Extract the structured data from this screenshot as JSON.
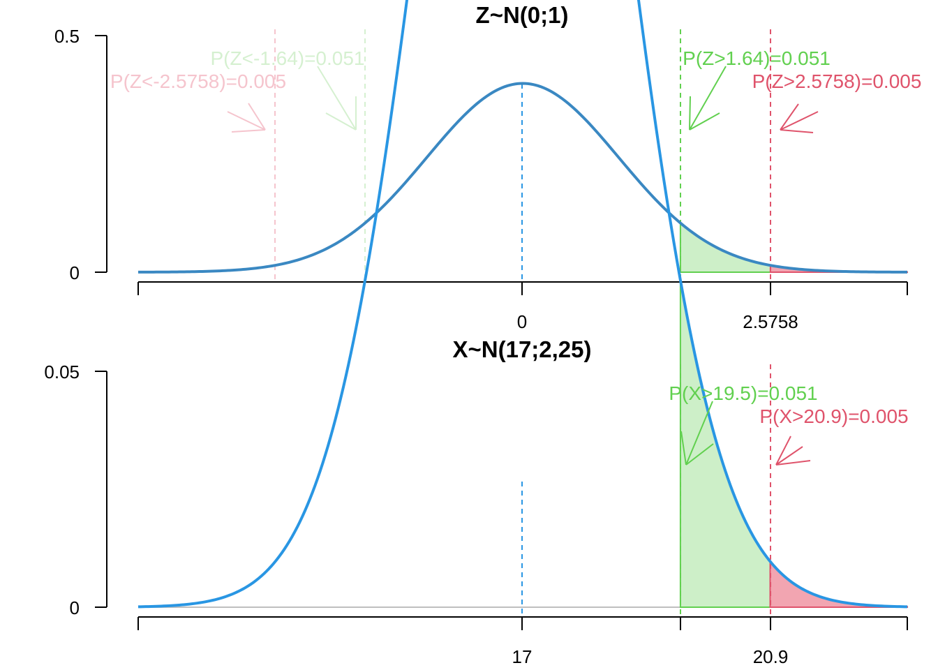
{
  "chart_data": [
    {
      "type": "line",
      "title": "Z~N(0;1)",
      "distribution": "normal",
      "mean": 0,
      "sd": 1,
      "xlim": [
        -4,
        4
      ],
      "ylim": [
        0,
        0.5
      ],
      "x_ticks_labeled": [
        "0",
        "2.5758"
      ],
      "x_ticks": [
        -4,
        0,
        1.64,
        2.5758,
        4
      ],
      "y_ticks": [
        "0",
        "0.5"
      ],
      "mean_line_color": "#2996e3",
      "curve_color": "#3a88c2",
      "shaded_regions": [
        {
          "from": 1.64,
          "to": 4,
          "color": "#61d04f",
          "fill": "#cdefc8"
        },
        {
          "from": 2.5758,
          "to": 4,
          "color": "#df536b",
          "fill": "#f2a5b1"
        }
      ],
      "reference_lines": [
        {
          "x": -2.5758,
          "color": "#f5c4cd",
          "label": "P(Z<-2.5758)=0.005"
        },
        {
          "x": -1.64,
          "color": "#d5f0d0",
          "label": "P(Z<-1.64)=0.051"
        },
        {
          "x": 1.64,
          "color": "#61d04f",
          "label": "P(Z>1.64)=0.051"
        },
        {
          "x": 2.5758,
          "color": "#df536b",
          "label": "P(Z>2.5758)=0.005"
        }
      ]
    },
    {
      "type": "line",
      "title": "X~N(17;2,25)",
      "distribution": "normal",
      "mean": 17,
      "sd": 1.5,
      "xlim": [
        11,
        23
      ],
      "ylim": [
        0,
        0.05
      ],
      "x_ticks_labeled": [
        "17",
        "20.9"
      ],
      "x_ticks": [
        11,
        17,
        19.46,
        20.86,
        23
      ],
      "y_ticks": [
        "0",
        "0.05"
      ],
      "curve_color": "#2996e3",
      "mean_line_color": "#2996e3",
      "shaded_regions": [
        {
          "from": 19.46,
          "to": 23,
          "color": "#61d04f",
          "fill": "#cdefc8"
        },
        {
          "from": 20.86,
          "to": 23,
          "color": "#df536b",
          "fill": "#f2a5b1"
        }
      ],
      "reference_lines": [
        {
          "x": 19.46,
          "color": "#61d04f",
          "label": "P(X>19.5)=0.051"
        },
        {
          "x": 20.86,
          "color": "#df536b",
          "label": "P(X>20.9)=0.005"
        }
      ]
    }
  ]
}
